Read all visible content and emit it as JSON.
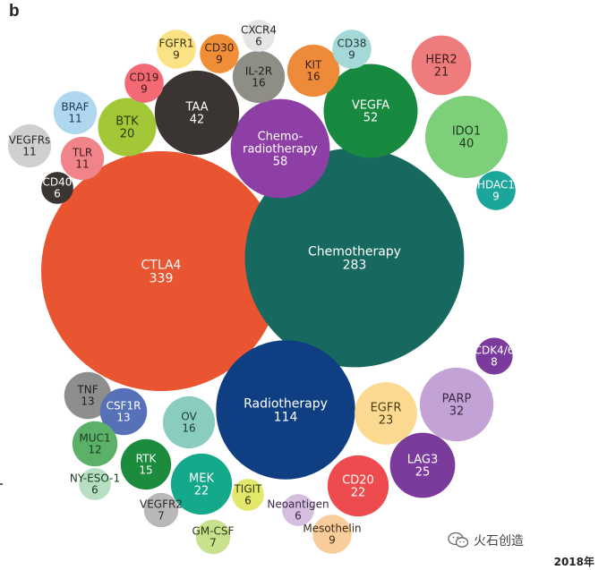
{
  "panel_label": "b",
  "watermark": {
    "text": "火石创造",
    "icon": "wechat-logo"
  },
  "footer_year": "2018年",
  "chart_data": {
    "type": "bubble",
    "title": "",
    "size_encodes": "count",
    "bubbles": [
      {
        "name": "CTLA4",
        "value": 339,
        "color": "#E85530",
        "text_color": "#ffffff"
      },
      {
        "name": "Chemotherapy",
        "value": 283,
        "color": "#17685E",
        "text_color": "#ffffff"
      },
      {
        "name": "Radiotherapy",
        "value": 114,
        "color": "#0F3F82",
        "text_color": "#ffffff"
      },
      {
        "name": "Chemo-radiotherapy",
        "lines": [
          "Chemo-",
          "radiotherapy"
        ],
        "value": 58,
        "color": "#8E3FA6",
        "text_color": "#ffffff"
      },
      {
        "name": "VEGFA",
        "value": 52,
        "color": "#188A40",
        "text_color": "#ffffff"
      },
      {
        "name": "TAA",
        "value": 42,
        "color": "#3A3533",
        "text_color": "#ffffff"
      },
      {
        "name": "IDO1",
        "value": 40,
        "color": "#7DCF7A",
        "text_color": "#1e3b1e"
      },
      {
        "name": "PARP",
        "value": 32,
        "color": "#C3A3D5",
        "text_color": "#3a2a45"
      },
      {
        "name": "LAG3",
        "value": 25,
        "color": "#7A3B9C",
        "text_color": "#ffffff"
      },
      {
        "name": "EGFR",
        "value": 23,
        "color": "#FCD991",
        "text_color": "#4a3b15"
      },
      {
        "name": "CD20",
        "value": 22,
        "color": "#EE4B4F",
        "text_color": "#ffffff"
      },
      {
        "name": "MEK",
        "value": 22,
        "color": "#14A98A",
        "text_color": "#ffffff"
      },
      {
        "name": "HER2",
        "value": 21,
        "color": "#EF7C7C",
        "text_color": "#3a1c1c"
      },
      {
        "name": "BTK",
        "value": 20,
        "color": "#A2C837",
        "text_color": "#2b3a0c"
      },
      {
        "name": "IL-2R",
        "value": 16,
        "color": "#8E8E86",
        "text_color": "#1f1f1f"
      },
      {
        "name": "KIT",
        "value": 16,
        "color": "#EE8B3A",
        "text_color": "#3a2010"
      },
      {
        "name": "OV",
        "value": 16,
        "color": "#8BCCC0",
        "text_color": "#1c3b35"
      },
      {
        "name": "RTK",
        "value": 15,
        "color": "#1D8B3E",
        "text_color": "#ffffff"
      },
      {
        "name": "TNF",
        "value": 13,
        "color": "#8E8E8E",
        "text_color": "#1f1f1f"
      },
      {
        "name": "CSF1R",
        "value": 13,
        "color": "#5671B8",
        "text_color": "#ffffff"
      },
      {
        "name": "MUC1",
        "value": 12,
        "color": "#5BB168",
        "text_color": "#1c3b22"
      },
      {
        "name": "BRAF",
        "value": 11,
        "color": "#AFD8F0",
        "text_color": "#1d3a52"
      },
      {
        "name": "VEGFRs",
        "value": 11,
        "color": "#CFCFCF",
        "text_color": "#2a2a2a"
      },
      {
        "name": "TLR",
        "value": 11,
        "color": "#F0848A",
        "text_color": "#3a1c1c"
      },
      {
        "name": "FGFR1",
        "value": 9,
        "color": "#FBE285",
        "text_color": "#3d3312"
      },
      {
        "name": "CD30",
        "value": 9,
        "color": "#EF8E36",
        "text_color": "#3a2010"
      },
      {
        "name": "CD19",
        "value": 9,
        "color": "#F36A75",
        "text_color": "#3a1c1c"
      },
      {
        "name": "CD38",
        "value": 9,
        "color": "#A5D9D7",
        "text_color": "#1c3b3a"
      },
      {
        "name": "HDAC1",
        "value": 9,
        "color": "#1AA69A",
        "text_color": "#ffffff"
      },
      {
        "name": "Mesothelin",
        "value": 9,
        "color": "#F9CD9B",
        "text_color": "#3d2a12"
      },
      {
        "name": "CDK4/6",
        "value": 8,
        "color": "#7A3B9C",
        "text_color": "#ffffff"
      },
      {
        "name": "GM-CSF",
        "value": 7,
        "color": "#C7E18C",
        "text_color": "#2b3a0c"
      },
      {
        "name": "VEGFR2",
        "value": 7,
        "color": "#B8B8B8",
        "text_color": "#2a2a2a"
      },
      {
        "name": "CXCR4",
        "value": 6,
        "color": "#E5E5E5",
        "text_color": "#2a2a2a"
      },
      {
        "name": "CD40",
        "value": 6,
        "color": "#3A3533",
        "text_color": "#ffffff"
      },
      {
        "name": "NY-ESO-1",
        "value": 6,
        "color": "#B6DEC1",
        "text_color": "#1c3b22"
      },
      {
        "name": "TIGIT",
        "value": 6,
        "color": "#E3E86B",
        "text_color": "#333311"
      },
      {
        "name": "Neoantigen",
        "value": 6,
        "color": "#D5BEDE",
        "text_color": "#3a2a45"
      }
    ]
  }
}
